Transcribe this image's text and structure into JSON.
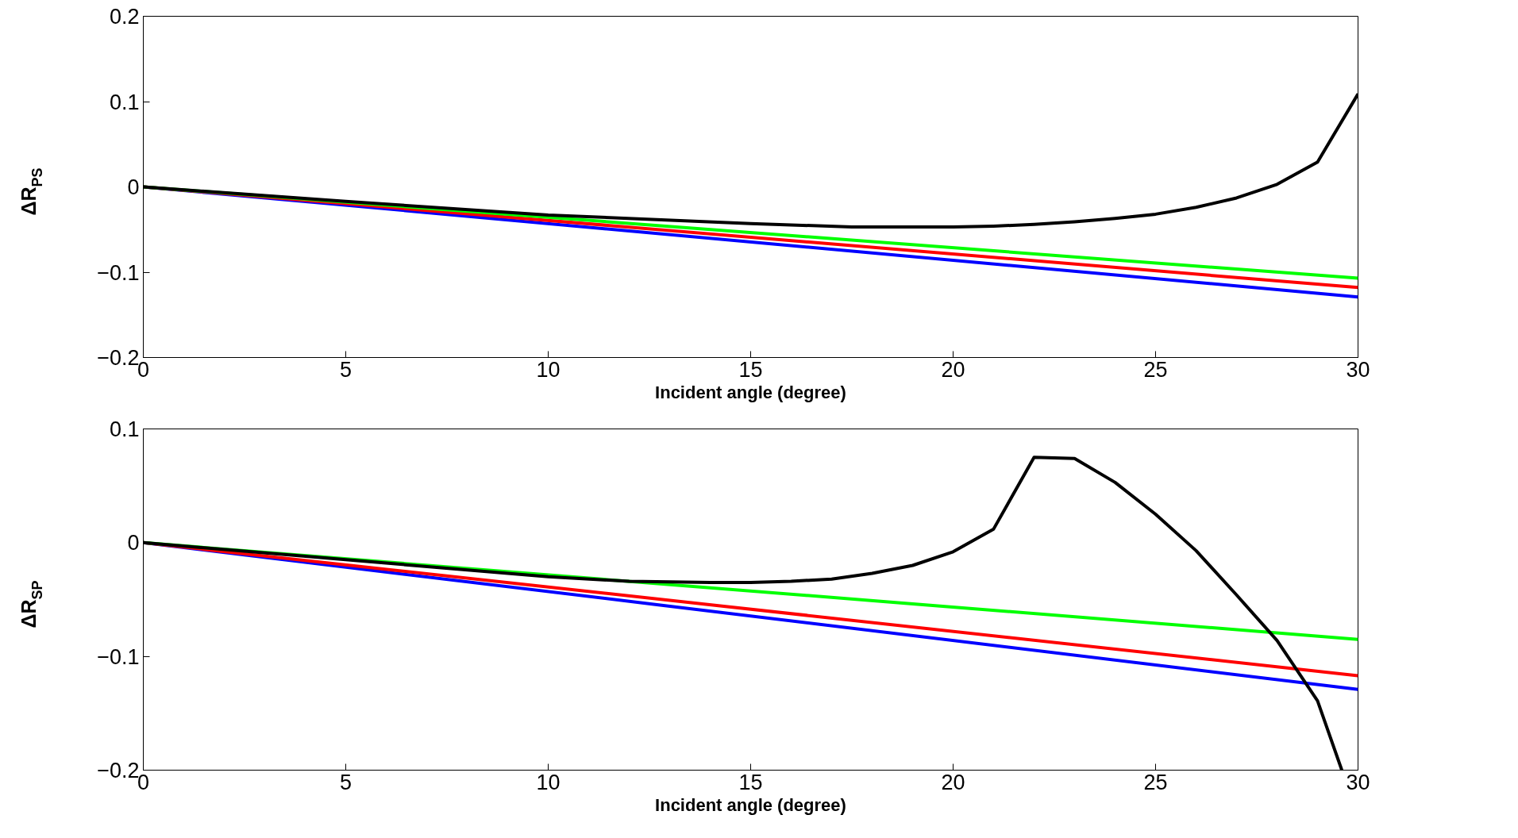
{
  "chart_data": [
    {
      "type": "line",
      "xlabel": "Incident angle (degree)",
      "ylabel": "ΔR$_{PS}$",
      "xlim": [
        0,
        30
      ],
      "ylim": [
        -0.2,
        0.2
      ],
      "xticks": [
        0,
        5,
        10,
        15,
        20,
        25,
        30
      ],
      "yticks": [
        -0.2,
        -0.1,
        0,
        0.1,
        0.2
      ],
      "grid": false,
      "marker": "none",
      "line_style": "solid",
      "series": [
        {
          "color": "#0000ff",
          "x": [
            0,
            30
          ],
          "values": [
            0,
            -0.129
          ]
        },
        {
          "color": "#ff0000",
          "x": [
            0,
            30
          ],
          "values": [
            0,
            -0.118
          ]
        },
        {
          "color": "#00ff00",
          "x": [
            0,
            30
          ],
          "values": [
            0,
            -0.107
          ]
        },
        {
          "color": "#000000",
          "x": [
            0,
            5,
            10,
            15,
            17.5,
            20,
            21,
            22,
            23,
            24,
            25,
            26,
            27,
            28,
            29,
            30
          ],
          "values": [
            0,
            -0.017,
            -0.033,
            -0.043,
            -0.047,
            -0.047,
            -0.046,
            -0.044,
            -0.041,
            -0.037,
            -0.032,
            -0.024,
            -0.013,
            0.003,
            0.029,
            0.109
          ]
        }
      ]
    },
    {
      "type": "line",
      "xlabel": "Incident angle (degree)",
      "ylabel": "ΔR$_{SP}$",
      "xlim": [
        0,
        30
      ],
      "ylim": [
        -0.2,
        0.1
      ],
      "xticks": [
        0,
        5,
        10,
        15,
        20,
        25,
        30
      ],
      "yticks": [
        -0.2,
        -0.1,
        0,
        0.1
      ],
      "grid": false,
      "marker": "none",
      "line_style": "solid",
      "series": [
        {
          "color": "#0000ff",
          "x": [
            0,
            30
          ],
          "values": [
            0,
            -0.129
          ]
        },
        {
          "color": "#ff0000",
          "x": [
            0,
            30
          ],
          "values": [
            0,
            -0.117
          ]
        },
        {
          "color": "#00ff00",
          "x": [
            0,
            30
          ],
          "values": [
            0,
            -0.085
          ]
        },
        {
          "color": "#000000",
          "x": [
            0,
            5,
            10,
            12,
            14,
            15,
            16,
            17,
            18,
            19,
            20,
            21,
            22,
            23,
            24,
            25,
            26,
            27,
            28,
            29,
            29.6
          ],
          "values": [
            0,
            -0.015,
            -0.03,
            -0.034,
            -0.035,
            -0.035,
            -0.034,
            -0.032,
            -0.027,
            -0.02,
            -0.008,
            0.012,
            0.075,
            0.074,
            0.053,
            0.025,
            -0.007,
            -0.046,
            -0.086,
            -0.139,
            -0.2
          ]
        }
      ]
    }
  ]
}
